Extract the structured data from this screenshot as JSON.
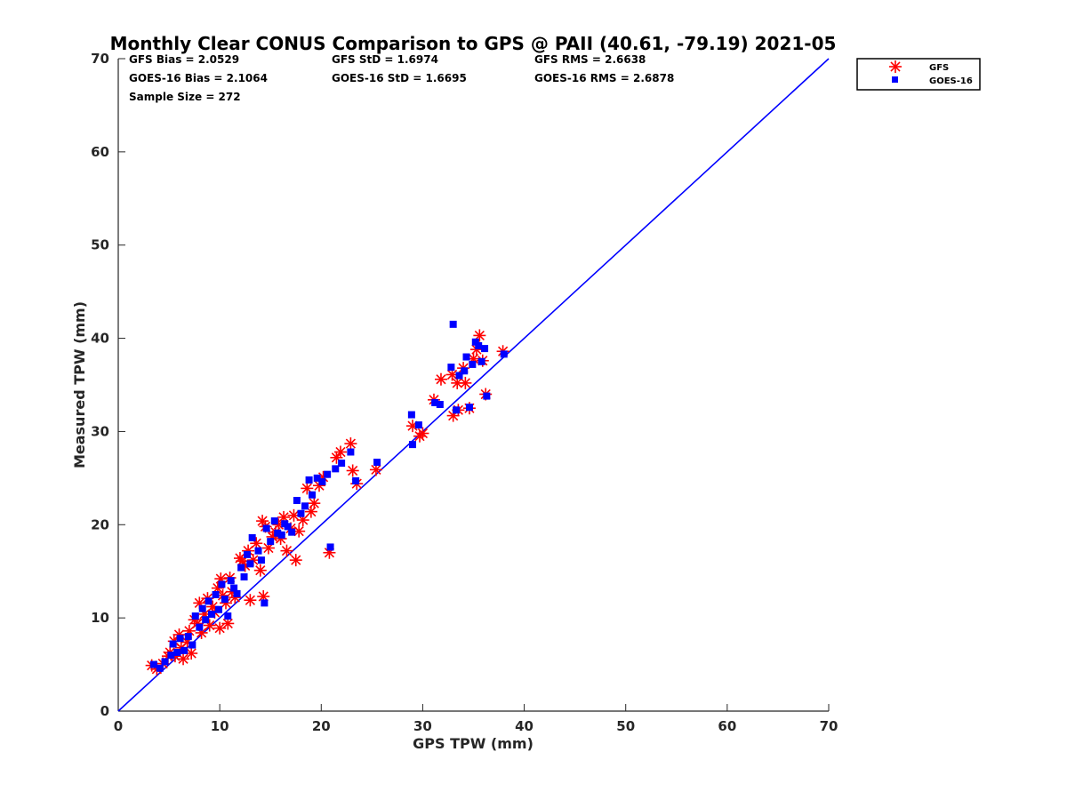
{
  "chart_data": {
    "type": "scatter",
    "title": "Monthly Clear CONUS Comparison to GPS @ PAII (40.61, -79.19) 2021-05",
    "xlabel": "GPS TPW (mm)",
    "ylabel": "Measured TPW (mm)",
    "xlim": [
      0,
      70
    ],
    "ylim": [
      0,
      70
    ],
    "xticks": [
      0,
      10,
      20,
      30,
      40,
      50,
      60,
      70
    ],
    "yticks": [
      0,
      10,
      20,
      30,
      40,
      50,
      60,
      70
    ],
    "legend_position": "top-right, outside plot",
    "one_to_one_line": {
      "x": [
        0,
        70
      ],
      "y": [
        0,
        70
      ],
      "color": "#0000ff"
    },
    "stats": [
      [
        "GFS Bias = 2.0529",
        "GFS StD = 1.6974",
        "GFS RMS = 2.6638"
      ],
      [
        "GOES-16 Bias = 2.1064",
        "GOES-16 StD = 1.6695",
        "GOES-16 RMS = 2.6878"
      ],
      [
        "Sample Size = 272"
      ]
    ],
    "series": [
      {
        "name": "GFS",
        "marker": "asterisk",
        "color": "#ff0000",
        "points": [
          [
            3.3,
            4.9
          ],
          [
            3.8,
            4.5
          ],
          [
            4.4,
            5.1
          ],
          [
            4.9,
            5.9
          ],
          [
            5.1,
            6.3
          ],
          [
            5.5,
            7.5
          ],
          [
            5.6,
            5.9
          ],
          [
            6.0,
            8.2
          ],
          [
            6.2,
            6.8
          ],
          [
            6.4,
            5.6
          ],
          [
            6.8,
            7.4
          ],
          [
            7.0,
            8.6
          ],
          [
            7.2,
            6.2
          ],
          [
            7.5,
            9.8
          ],
          [
            7.8,
            9.4
          ],
          [
            8.0,
            11.6
          ],
          [
            8.2,
            8.4
          ],
          [
            8.5,
            10.4
          ],
          [
            8.8,
            12.1
          ],
          [
            9.0,
            9.2
          ],
          [
            9.3,
            11.2
          ],
          [
            9.5,
            10.6
          ],
          [
            9.8,
            13.2
          ],
          [
            10.0,
            8.9
          ],
          [
            10.1,
            14.2
          ],
          [
            10.3,
            12.4
          ],
          [
            10.6,
            11.6
          ],
          [
            10.8,
            9.4
          ],
          [
            11.0,
            14.3
          ],
          [
            11.2,
            12.8
          ],
          [
            11.5,
            12.2
          ],
          [
            12.0,
            16.4
          ],
          [
            12.2,
            16.1
          ],
          [
            12.5,
            15.6
          ],
          [
            12.8,
            17.2
          ],
          [
            13.0,
            11.9
          ],
          [
            13.3,
            16.2
          ],
          [
            13.6,
            18.0
          ],
          [
            14.0,
            15.1
          ],
          [
            14.2,
            20.4
          ],
          [
            14.5,
            19.8
          ],
          [
            14.3,
            12.3
          ],
          [
            14.8,
            17.5
          ],
          [
            15.2,
            18.7
          ],
          [
            15.5,
            19.2
          ],
          [
            15.8,
            20.0
          ],
          [
            16.0,
            18.5
          ],
          [
            16.3,
            20.8
          ],
          [
            16.6,
            17.2
          ],
          [
            17.0,
            19.6
          ],
          [
            17.3,
            21.0
          ],
          [
            17.5,
            16.2
          ],
          [
            17.8,
            19.3
          ],
          [
            18.2,
            20.5
          ],
          [
            18.6,
            23.9
          ],
          [
            19.0,
            21.4
          ],
          [
            19.3,
            22.3
          ],
          [
            19.8,
            24.2
          ],
          [
            20.2,
            25.1
          ],
          [
            20.8,
            17.0
          ],
          [
            21.5,
            27.2
          ],
          [
            21.9,
            27.8
          ],
          [
            22.9,
            28.7
          ],
          [
            23.1,
            25.8
          ],
          [
            23.5,
            24.4
          ],
          [
            25.4,
            25.9
          ],
          [
            29.0,
            30.6
          ],
          [
            29.7,
            29.5
          ],
          [
            30.0,
            29.8
          ],
          [
            31.1,
            33.4
          ],
          [
            31.8,
            35.6
          ],
          [
            32.9,
            36.1
          ],
          [
            33.0,
            31.7
          ],
          [
            33.4,
            35.2
          ],
          [
            33.5,
            32.3
          ],
          [
            34.0,
            36.8
          ],
          [
            34.2,
            35.2
          ],
          [
            34.6,
            32.5
          ],
          [
            35.0,
            37.8
          ],
          [
            35.3,
            38.8
          ],
          [
            35.6,
            40.3
          ],
          [
            35.9,
            37.6
          ],
          [
            36.2,
            34.0
          ],
          [
            37.9,
            38.6
          ]
        ]
      },
      {
        "name": "GOES-16",
        "marker": "square",
        "color": "#0000ff",
        "points": [
          [
            3.5,
            5.0
          ],
          [
            4.1,
            4.6
          ],
          [
            4.6,
            5.3
          ],
          [
            5.2,
            6.0
          ],
          [
            5.4,
            7.2
          ],
          [
            5.8,
            6.3
          ],
          [
            6.1,
            7.8
          ],
          [
            6.5,
            6.5
          ],
          [
            6.9,
            8.0
          ],
          [
            7.3,
            7.1
          ],
          [
            7.6,
            10.2
          ],
          [
            8.0,
            9.0
          ],
          [
            8.3,
            11.0
          ],
          [
            8.6,
            9.8
          ],
          [
            8.9,
            11.8
          ],
          [
            9.2,
            10.4
          ],
          [
            9.6,
            12.5
          ],
          [
            9.9,
            10.9
          ],
          [
            10.2,
            13.6
          ],
          [
            10.5,
            12.0
          ],
          [
            10.8,
            10.2
          ],
          [
            11.1,
            14.0
          ],
          [
            11.4,
            13.2
          ],
          [
            11.7,
            12.6
          ],
          [
            12.1,
            15.4
          ],
          [
            12.4,
            14.4
          ],
          [
            12.7,
            16.8
          ],
          [
            13.0,
            15.8
          ],
          [
            13.2,
            18.6
          ],
          [
            13.8,
            17.2
          ],
          [
            14.1,
            16.2
          ],
          [
            14.4,
            11.6
          ],
          [
            14.6,
            19.6
          ],
          [
            15.0,
            18.2
          ],
          [
            15.4,
            20.4
          ],
          [
            15.7,
            19.1
          ],
          [
            16.1,
            18.9
          ],
          [
            16.4,
            20.1
          ],
          [
            16.7,
            19.8
          ],
          [
            17.1,
            19.2
          ],
          [
            17.6,
            22.6
          ],
          [
            18.0,
            21.2
          ],
          [
            18.4,
            22.0
          ],
          [
            18.8,
            24.8
          ],
          [
            19.1,
            23.2
          ],
          [
            19.6,
            25.0
          ],
          [
            20.1,
            24.6
          ],
          [
            20.6,
            25.4
          ],
          [
            20.9,
            17.6
          ],
          [
            21.4,
            26.0
          ],
          [
            22.0,
            26.6
          ],
          [
            22.9,
            27.8
          ],
          [
            23.4,
            24.7
          ],
          [
            25.5,
            26.7
          ],
          [
            28.9,
            31.8
          ],
          [
            29.0,
            28.6
          ],
          [
            29.6,
            30.7
          ],
          [
            31.2,
            33.1
          ],
          [
            31.7,
            32.9
          ],
          [
            32.8,
            36.9
          ],
          [
            33.0,
            41.5
          ],
          [
            33.3,
            32.3
          ],
          [
            33.6,
            36.0
          ],
          [
            34.1,
            36.5
          ],
          [
            34.3,
            38.0
          ],
          [
            34.6,
            32.6
          ],
          [
            34.9,
            37.2
          ],
          [
            35.2,
            39.6
          ],
          [
            35.5,
            39.2
          ],
          [
            35.8,
            37.5
          ],
          [
            36.1,
            38.9
          ],
          [
            36.3,
            33.8
          ],
          [
            38.0,
            38.3
          ]
        ]
      }
    ]
  }
}
